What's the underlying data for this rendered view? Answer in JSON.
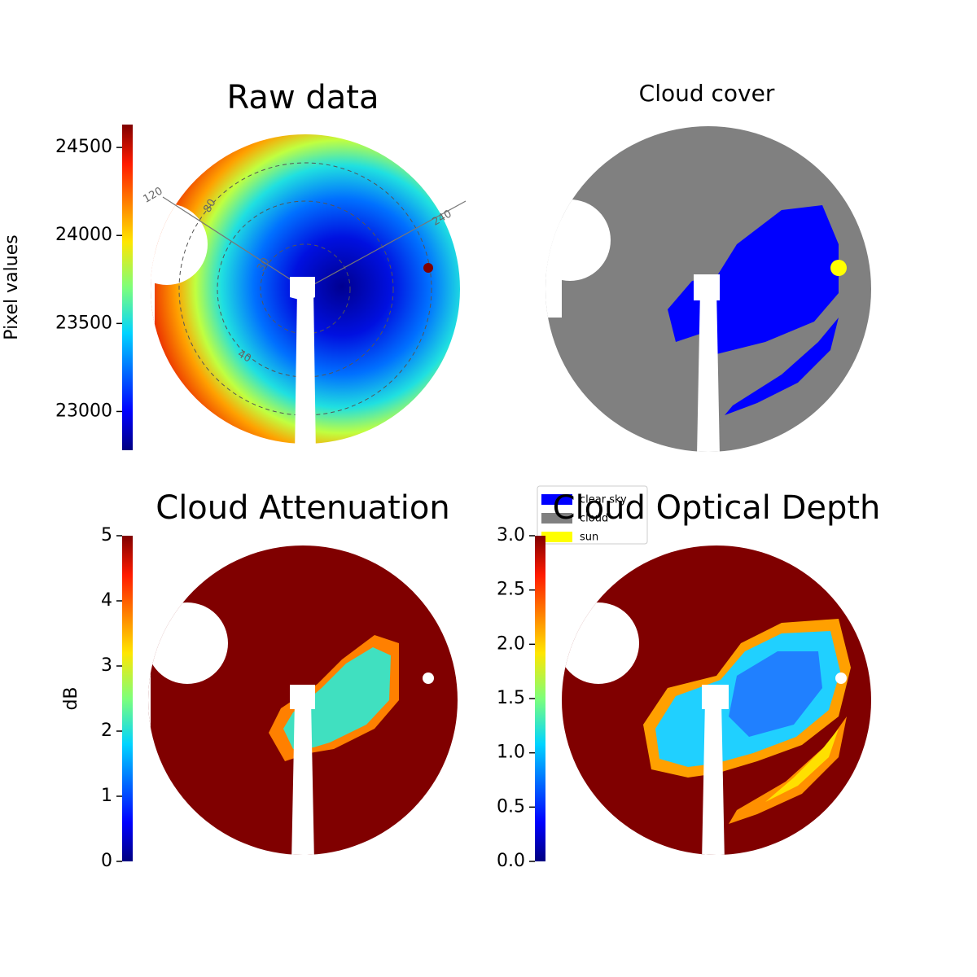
{
  "chart_data": [
    {
      "type": "image",
      "title": "Raw data",
      "colormap": "jet",
      "colorbar_label": "Pixel values",
      "clim": [
        22780,
        24630
      ],
      "cticks": [
        23000,
        23500,
        24000,
        24500
      ],
      "annotations": [
        "120",
        "240",
        "80",
        "30",
        "40"
      ]
    },
    {
      "type": "categorical",
      "title": "Cloud cover",
      "categories": [
        "clear sky",
        "cloud",
        "sun"
      ],
      "colors": [
        "#0000ff",
        "#808080",
        "#ffff00"
      ]
    },
    {
      "type": "image",
      "title": "Cloud Attenuation",
      "colormap": "jet",
      "colorbar_label": "dB",
      "clim": [
        0,
        5
      ],
      "cticks": [
        0,
        1,
        2,
        3,
        4,
        5
      ]
    },
    {
      "type": "image",
      "title": "Cloud Optical Depth",
      "colormap": "jet",
      "clim": [
        0,
        3
      ],
      "cticks": [
        {
          "value": 0,
          "label": "0.0"
        },
        0.5,
        {
          "value": 1,
          "label": "1.0"
        },
        1.5,
        {
          "value": 2,
          "label": "2.0"
        },
        2.5,
        {
          "value": 3,
          "label": "3.0"
        }
      ]
    }
  ]
}
